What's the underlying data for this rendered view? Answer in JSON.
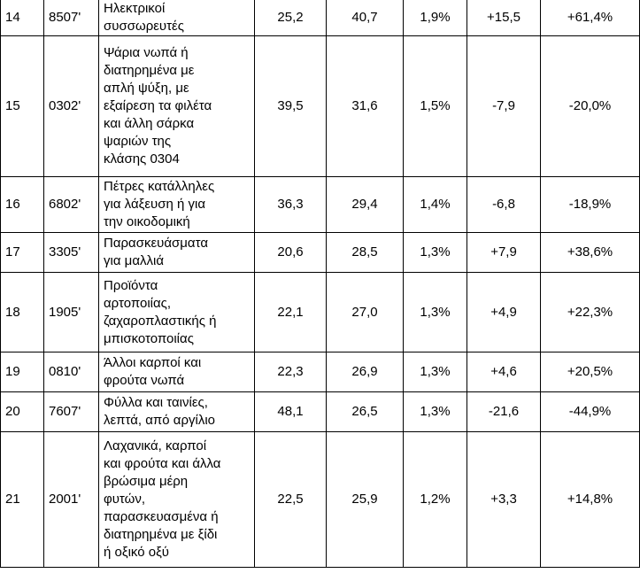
{
  "table": {
    "rows": [
      {
        "rank": "14",
        "code": "8507'",
        "description": [
          "Ηλεκτρικοί",
          "συσσωρευτές"
        ],
        "value_prev": "25,2",
        "value_curr": "40,7",
        "share": "1,9%",
        "change_abs": "+15,5",
        "change_pct": "+61,4%"
      },
      {
        "rank": "15",
        "code": "0302'",
        "description": [
          "Ψάρια νωπά ή",
          "διατηρημένα με",
          "απλή ψύξη, με",
          "εξαίρεση τα φιλέτα",
          "και άλλη σάρκα",
          "ψαριών της",
          "κλάσης 0304"
        ],
        "value_prev": "39,5",
        "value_curr": "31,6",
        "share": "1,5%",
        "change_abs": "-7,9",
        "change_pct": "-20,0%"
      },
      {
        "rank": "16",
        "code": "6802'",
        "description": [
          "Πέτρες κατάλληλες",
          "για λάξευση ή για",
          "την οικοδομική"
        ],
        "value_prev": "36,3",
        "value_curr": "29,4",
        "share": "1,4%",
        "change_abs": "-6,8",
        "change_pct": "-18,9%"
      },
      {
        "rank": "17",
        "code": "3305'",
        "description": [
          "Παρασκευάσματα",
          "για μαλλιά"
        ],
        "value_prev": "20,6",
        "value_curr": "28,5",
        "share": "1,3%",
        "change_abs": "+7,9",
        "change_pct": "+38,6%"
      },
      {
        "rank": "18",
        "code": "1905'",
        "description": [
          "Προϊόντα",
          "αρτοποιίας,",
          "ζαχαροπλαστικής ή",
          "μπισκοτοποιίας"
        ],
        "value_prev": "22,1",
        "value_curr": "27,0",
        "share": "1,3%",
        "change_abs": "+4,9",
        "change_pct": "+22,3%"
      },
      {
        "rank": "19",
        "code": "0810'",
        "description": [
          "Άλλοι καρποί και",
          "φρούτα νωπά"
        ],
        "value_prev": "22,3",
        "value_curr": "26,9",
        "share": "1,3%",
        "change_abs": "+4,6",
        "change_pct": "+20,5%"
      },
      {
        "rank": "20",
        "code": "7607'",
        "description": [
          "Φύλλα και ταινίες,",
          "λεπτά, από αργίλιο"
        ],
        "value_prev": "48,1",
        "value_curr": "26,5",
        "share": "1,3%",
        "change_abs": "-21,6",
        "change_pct": "-44,9%"
      },
      {
        "rank": "21",
        "code": "2001'",
        "description": [
          "Λαχανικά, καρποί",
          "και φρούτα και άλλα",
          "βρώσιμα μέρη",
          "φυτών,",
          "παρασκευασμένα ή",
          "διατηρημένα με ξίδι",
          "ή οξικό οξύ"
        ],
        "value_prev": "22,5",
        "value_curr": "25,9",
        "share": "1,2%",
        "change_abs": "+3,3",
        "change_pct": "+14,8%"
      }
    ]
  }
}
